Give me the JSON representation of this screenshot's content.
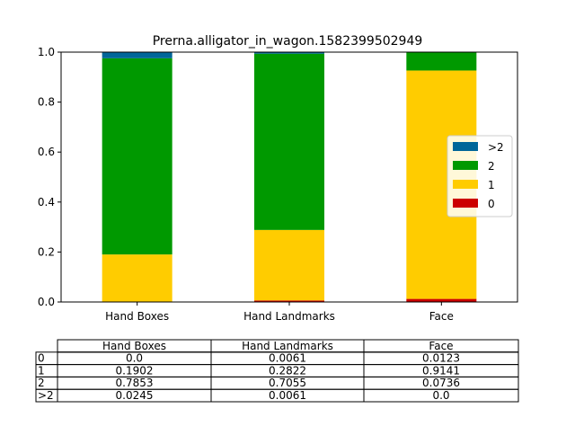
{
  "chart_data": {
    "type": "bar",
    "stacked": true,
    "title": "Prerna.alligator_in_wagon.1582399502949",
    "categories": [
      "Hand Boxes",
      "Hand Landmarks",
      "Face"
    ],
    "ylim": [
      0,
      1.0
    ],
    "yticks": [
      "0.0",
      "0.2",
      "0.4",
      "0.6",
      "0.8",
      "1.0"
    ],
    "legend_position": "center-right",
    "series": [
      {
        "name": "0",
        "color": "#cc0000",
        "values": [
          0.0,
          0.0061,
          0.0123
        ]
      },
      {
        "name": "1",
        "color": "#ffcc00",
        "values": [
          0.1902,
          0.2822,
          0.9141
        ]
      },
      {
        "name": "2",
        "color": "#009900",
        "values": [
          0.7853,
          0.7055,
          0.0736
        ]
      },
      {
        "name": ">2",
        "color": "#006699",
        "values": [
          0.0245,
          0.0061,
          0.0
        ]
      }
    ],
    "table": {
      "columns": [
        "Hand Boxes",
        "Hand Landmarks",
        "Face"
      ],
      "rows": [
        {
          "label": "0",
          "cells": [
            "0.0",
            "0.0061",
            "0.0123"
          ]
        },
        {
          "label": "1",
          "cells": [
            "0.1902",
            "0.2822",
            "0.9141"
          ]
        },
        {
          "label": "2",
          "cells": [
            "0.7853",
            "0.7055",
            "0.0736"
          ]
        },
        {
          "label": ">2",
          "cells": [
            "0.0245",
            "0.0061",
            "0.0"
          ]
        }
      ]
    }
  }
}
